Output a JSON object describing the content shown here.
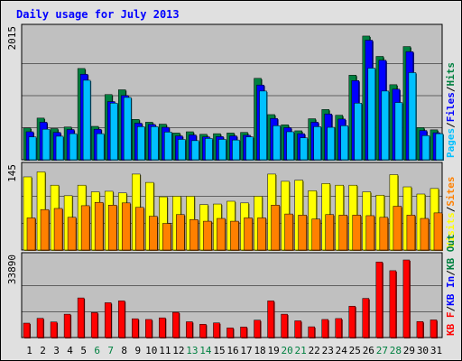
{
  "chart_data": {
    "type": "bar",
    "title": "Daily usage for July 2013",
    "categories": [
      "1",
      "2",
      "3",
      "4",
      "5",
      "6",
      "7",
      "8",
      "9",
      "10",
      "11",
      "12",
      "13",
      "14",
      "15",
      "16",
      "17",
      "18",
      "19",
      "20",
      "21",
      "22",
      "23",
      "24",
      "25",
      "26",
      "27",
      "28",
      "29",
      "30",
      "31"
    ],
    "weekend_days": [
      "6",
      "7",
      "13",
      "14",
      "20",
      "21",
      "27",
      "28"
    ],
    "panels": [
      {
        "name": "top",
        "max_label": "2015",
        "ylim": [
          0,
          2015
        ],
        "legend": [
          {
            "text": "Pages",
            "color": "#00c0ff"
          },
          {
            "text": "/",
            "color": "#000000"
          },
          {
            "text": "Files",
            "color": "#0000ff"
          },
          {
            "text": "/",
            "color": "#000000"
          },
          {
            "text": "Hits",
            "color": "#008040"
          }
        ],
        "series": [
          {
            "name": "Hits",
            "color": "#008040",
            "values": [
              500,
              655,
              490,
              515,
              1435,
              525,
              1025,
              1100,
              635,
              590,
              560,
              420,
              440,
              400,
              410,
              420,
              430,
              1280,
              710,
              550,
              455,
              645,
              790,
              700,
              1330,
              1945,
              1625,
              1180,
              1780,
              505,
              470
            ]
          },
          {
            "name": "Files",
            "color": "#0000ff",
            "values": [
              440,
              590,
              430,
              475,
              1345,
              480,
              915,
              1010,
              575,
              555,
              510,
              375,
              390,
              360,
              365,
              375,
              385,
              1175,
              650,
              505,
              410,
              590,
              720,
              640,
              1245,
              1880,
              1565,
              1110,
              1700,
              460,
              425
            ]
          },
          {
            "name": "Pages",
            "color": "#00c0ff",
            "values": [
              360,
              480,
              370,
              410,
              1250,
              410,
              890,
              980,
              520,
              520,
              435,
              320,
              300,
              335,
              320,
              310,
              360,
              1080,
              535,
              440,
              345,
              520,
              510,
              535,
              890,
              1440,
              1080,
              900,
              1370,
              380,
              410
            ]
          }
        ]
      },
      {
        "name": "middle",
        "max_label": "145",
        "ylim": [
          0,
          145
        ],
        "legend": [
          {
            "text": "Visits",
            "color": "#ffff00"
          },
          {
            "text": "/",
            "color": "#000000"
          },
          {
            "text": "Sites",
            "color": "#ff8000"
          }
        ],
        "series": [
          {
            "name": "Visits",
            "color": "#ffff00",
            "values": [
              132,
              141,
              117,
              98,
              117,
              105,
              106,
              103,
              137,
              122,
              96,
              97,
              97,
              82,
              83,
              88,
              85,
              97,
              137,
              124,
              126,
              107,
              120,
              117,
              117,
              105,
              99,
              136,
              114,
              101,
              111
            ]
          },
          {
            "name": "Sites",
            "color": "#ff8000",
            "values": [
              58,
              73,
              75,
              59,
              80,
              86,
              81,
              85,
              77,
              61,
              48,
              64,
              55,
              52,
              57,
              52,
              58,
              58,
              81,
              65,
              63,
              56,
              64,
              63,
              63,
              62,
              59,
              79,
              63,
              57,
              67
            ]
          }
        ]
      },
      {
        "name": "bottom",
        "max_label": "33890",
        "ylim": [
          0,
          33890
        ],
        "legend": [
          {
            "text": "KB F",
            "color": "#ff0000"
          },
          {
            "text": "/",
            "color": "#000000"
          },
          {
            "text": "KB In",
            "color": "#0000ff"
          },
          {
            "text": "/",
            "color": "#000000"
          },
          {
            "text": "KB Out",
            "color": "#008040"
          }
        ],
        "series": [
          {
            "name": "KB F",
            "color": "#ff0000",
            "values": [
              6300,
              8400,
              6800,
              10200,
              17300,
              10900,
              15200,
              16000,
              8200,
              7900,
              8600,
              11000,
              6900,
              5800,
              6400,
              4200,
              4600,
              7600,
              16000,
              10200,
              7300,
              4700,
              7900,
              8300,
              13700,
              17100,
              33000,
              29200,
              33890,
              7000,
              7700
            ]
          }
        ]
      }
    ]
  }
}
